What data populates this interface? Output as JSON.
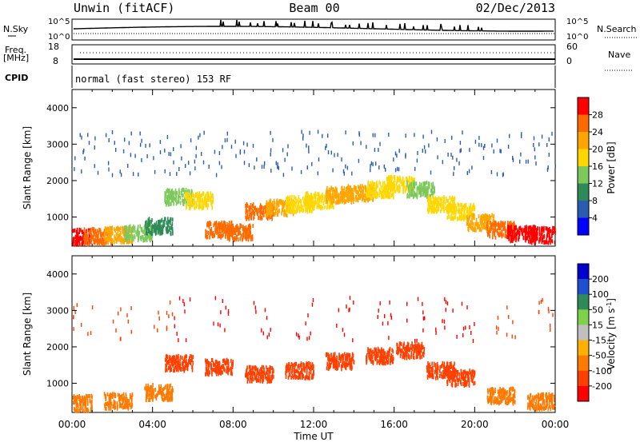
{
  "header": {
    "station": "Unwin (fitACF)",
    "beam": "Beam 00",
    "date": "02/Dec/2013"
  },
  "noise_panel": {
    "left_label": "N.Sky",
    "right_label": "N.Search",
    "left_ticks": [
      "10^5",
      "10^0"
    ],
    "right_ticks": [
      "10^5",
      "10^0"
    ]
  },
  "freq_panel": {
    "left_label_1": "Freq.",
    "left_label_2": "[MHz]",
    "right_label": "Nave",
    "left_ticks": [
      "18",
      "8"
    ],
    "right_ticks": [
      "60",
      "0"
    ]
  },
  "cpid_panel": {
    "label": "CPID",
    "text": "normal (fast stereo) 153 RF"
  },
  "colors": {
    "power_scale": [
      "#0000ff",
      "#2a5db0",
      "#2e8b57",
      "#7cc85a",
      "#ffd700",
      "#ffa500",
      "#ff6a00",
      "#ff0000"
    ],
    "velocity_scale": [
      "#0000cc",
      "#1f4fd0",
      "#2e8b57",
      "#7cd34a",
      "#c0c0c0",
      "#ffb000",
      "#ff7a00",
      "#ff4000",
      "#ff0000"
    ]
  },
  "chart_data": [
    {
      "type": "heatmap",
      "panel": "power",
      "xlabel": "",
      "ylabel": "Slant Range [km]",
      "ylim": [
        200,
        4500
      ],
      "yticks": [
        "1000",
        "2000",
        "3000",
        "4000"
      ],
      "colorbar": {
        "label": "Power [dB]",
        "range": [
          0,
          32
        ],
        "ticks": [
          "4",
          "8",
          "12",
          "16",
          "20",
          "24",
          "28"
        ]
      },
      "series": [
        {
          "values": [
            [
              0.0,
              500,
              28
            ],
            [
              1.0,
              520,
              26
            ],
            [
              2.0,
              560,
              20
            ],
            [
              3.0,
              620,
              14
            ],
            [
              4.0,
              800,
              10
            ],
            [
              5.0,
              1600,
              14
            ],
            [
              6.0,
              1500,
              18
            ],
            [
              7.0,
              700,
              24
            ],
            [
              8.0,
              620,
              26
            ],
            [
              9.0,
              1200,
              24
            ],
            [
              10.0,
              1300,
              20
            ],
            [
              11.0,
              1400,
              18
            ],
            [
              12.0,
              1500,
              18
            ],
            [
              13.0,
              1650,
              20
            ],
            [
              14.0,
              1700,
              22
            ],
            [
              15.0,
              1800,
              18
            ],
            [
              16.0,
              1950,
              16
            ],
            [
              17.0,
              1800,
              14
            ],
            [
              18.0,
              1400,
              16
            ],
            [
              19.0,
              1200,
              18
            ],
            [
              20.0,
              900,
              22
            ],
            [
              21.0,
              700,
              24
            ],
            [
              22.0,
              600,
              28
            ],
            [
              23.0,
              550,
              28
            ]
          ]
        }
      ]
    },
    {
      "type": "heatmap",
      "panel": "velocity",
      "xlabel": "Time UT",
      "ylabel": "Slant Range [km]",
      "ylim": [
        200,
        4500
      ],
      "yticks": [
        "1000",
        "2000",
        "3000",
        "4000"
      ],
      "xticks": [
        "00:00",
        "04:00",
        "08:00",
        "12:00",
        "16:00",
        "20:00",
        "00:00"
      ],
      "colorbar": {
        "label": "Velocity [m s",
        "label_sup": "-1",
        "label_end": "]",
        "ticks": [
          "200",
          "100",
          "50",
          "15",
          "-15",
          "-50",
          "-100",
          "-200"
        ]
      },
      "series": [
        {
          "values": [
            [
              0.0,
              500,
              -100
            ],
            [
              2.0,
              560,
              -80
            ],
            [
              4.0,
              800,
              -60
            ],
            [
              5.0,
              1600,
              -200
            ],
            [
              7.0,
              1500,
              -150
            ],
            [
              9.0,
              1300,
              -200
            ],
            [
              11.0,
              1400,
              -200
            ],
            [
              13.0,
              1650,
              -200
            ],
            [
              15.0,
              1800,
              -180
            ],
            [
              16.5,
              1950,
              -200
            ],
            [
              18.0,
              1400,
              -150
            ],
            [
              19.0,
              1200,
              -120
            ],
            [
              21.0,
              700,
              -80
            ],
            [
              23.0,
              550,
              -60
            ]
          ]
        }
      ]
    }
  ]
}
